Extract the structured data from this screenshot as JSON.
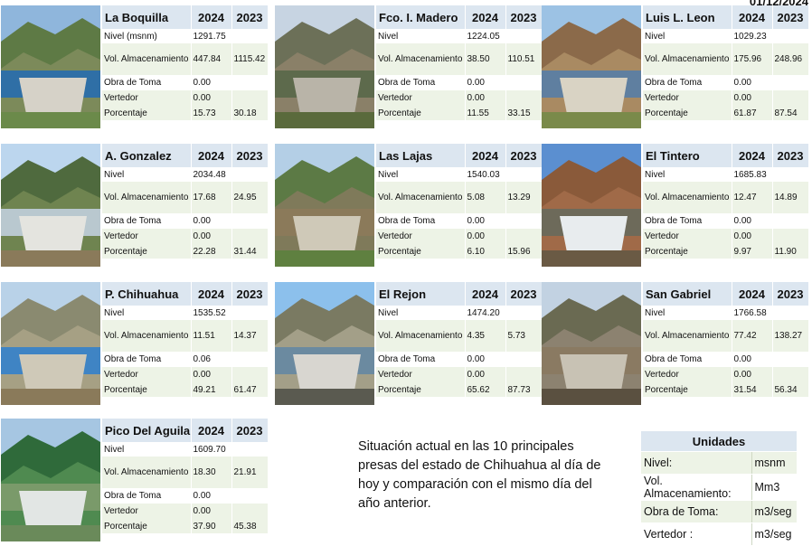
{
  "date_text": "01/12/2024",
  "labels": {
    "nivel": "Nivel",
    "vol": "Vol. Almacenamiento",
    "obra": "Obra de Toma",
    "vert": "Vertedor",
    "porc": "Porcentaje",
    "y1": "2024",
    "y2": "2023"
  },
  "dams": [
    {
      "name": "La Boquilla",
      "nivel_label": "Nivel (msnm)",
      "nivel": "1291.75",
      "vol_2024": "447.84",
      "vol_2023": "1115.42",
      "obra": "0.00",
      "vert": "0.00",
      "porc_2024": "15.73",
      "porc_2023": "30.18"
    },
    {
      "name": "Fco. I. Madero",
      "nivel_label": "Nivel",
      "nivel": "1224.05",
      "vol_2024": "38.50",
      "vol_2023": "110.51",
      "obra": "0.00",
      "vert": "0.00",
      "porc_2024": "11.55",
      "porc_2023": "33.15"
    },
    {
      "name": "Luis L. Leon",
      "nivel_label": "Nivel",
      "nivel": "1029.23",
      "vol_2024": "175.96",
      "vol_2023": "248.96",
      "obra": "0.00",
      "vert": "0.00",
      "porc_2024": "61.87",
      "porc_2023": "87.54"
    },
    {
      "name": "A. Gonzalez",
      "nivel_label": "Nivel",
      "nivel": "2034.48",
      "vol_2024": "17.68",
      "vol_2023": "24.95",
      "obra": "0.00",
      "vert": "0.00",
      "porc_2024": "22.28",
      "porc_2023": "31.44"
    },
    {
      "name": "Las Lajas",
      "nivel_label": "Nivel",
      "nivel": "1540.03",
      "vol_2024": "5.08",
      "vol_2023": "13.29",
      "obra": "0.00",
      "vert": "0.00",
      "porc_2024": "6.10",
      "porc_2023": "15.96"
    },
    {
      "name": "El Tintero",
      "nivel_label": "Nivel",
      "nivel": "1685.83",
      "vol_2024": "12.47",
      "vol_2023": "14.89",
      "obra": "0.00",
      "vert": "0.00",
      "porc_2024": "9.97",
      "porc_2023": "11.90"
    },
    {
      "name": "P. Chihuahua",
      "nivel_label": "Nivel",
      "nivel": "1535.52",
      "vol_2024": "11.51",
      "vol_2023": "14.37",
      "obra": "0.06",
      "vert": "0.00",
      "porc_2024": "49.21",
      "porc_2023": "61.47"
    },
    {
      "name": "El Rejon",
      "nivel_label": "Nivel",
      "nivel": "1474.20",
      "vol_2024": "4.35",
      "vol_2023": "5.73",
      "obra": "0.00",
      "vert": "0.00",
      "porc_2024": "65.62",
      "porc_2023": "87.73"
    },
    {
      "name": "San Gabriel",
      "nivel_label": "Nivel",
      "nivel": "1766.58",
      "vol_2024": "77.42",
      "vol_2023": "138.27",
      "obra": "0.00",
      "vert": "0.00",
      "porc_2024": "31.54",
      "porc_2023": "56.34"
    },
    {
      "name": "Pico Del Aguila",
      "nivel_label": "Nivel",
      "nivel": "1609.70",
      "vol_2024": "18.30",
      "vol_2023": "21.91",
      "obra": "0.00",
      "vert": "0.00",
      "porc_2024": "37.90",
      "porc_2023": "45.38"
    }
  ],
  "description": "Situación actual en las 10 principales presas del estado de Chihuahua al día de hoy y comparación con el mismo día del año anterior.",
  "units": {
    "title": "Unidades",
    "rows": [
      {
        "label": "Nivel:",
        "unit": "msnm"
      },
      {
        "label": "Vol. Almacenamiento:",
        "unit": "Mm3"
      },
      {
        "label": "Obra de Toma:",
        "unit": "m3/seg"
      },
      {
        "label": "Vertedor :",
        "unit": "m3/seg"
      }
    ]
  }
}
